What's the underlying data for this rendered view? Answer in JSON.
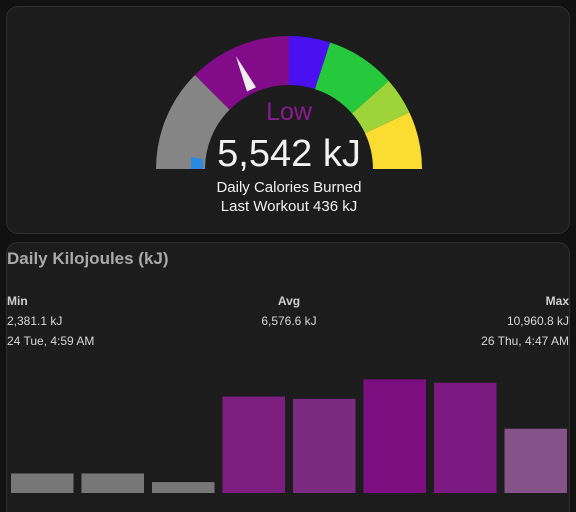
{
  "gauge": {
    "severity_label": "Low",
    "value_text": "5,542 kJ",
    "name": "Daily Calories Burned",
    "subtitle": "Last Workout 436 kJ",
    "needle_fraction": 0.36,
    "segments": [
      {
        "color": "#858585",
        "start": 0.0,
        "end": 0.25
      },
      {
        "color": "#820b8a",
        "start": 0.25,
        "end": 0.5
      },
      {
        "color": "#4a10f2",
        "start": 0.5,
        "end": 0.6
      },
      {
        "color": "#26c93b",
        "start": 0.6,
        "end": 0.77
      },
      {
        "color": "#9fd33a",
        "start": 0.77,
        "end": 0.86
      },
      {
        "color": "#fbdc31",
        "start": 0.86,
        "end": 1.0
      }
    ],
    "marker_color": "#2b8ae0",
    "needle_color": "#eeeeee"
  },
  "stats": {
    "title": "Daily Kilojoules (kJ)",
    "min": {
      "label": "Min",
      "value": "2,381.1 kJ",
      "time": "24 Tue, 4:59 AM"
    },
    "avg": {
      "label": "Avg",
      "value": "6,576.6 kJ"
    },
    "max": {
      "label": "Max",
      "value": "10,960.8 kJ",
      "time": "26 Thu, 4:47 AM"
    }
  },
  "chart_data": {
    "type": "bar",
    "ylim": [
      0,
      12000
    ],
    "values": [
      1700,
      1700,
      950,
      8400,
      8200,
      9900,
      9600,
      5600
    ],
    "colors": [
      "#777777",
      "#777777",
      "#777777",
      "#7b1e7f",
      "#7b2a82",
      "#7b0f7f",
      "#7b1a80",
      "#85538a"
    ]
  }
}
